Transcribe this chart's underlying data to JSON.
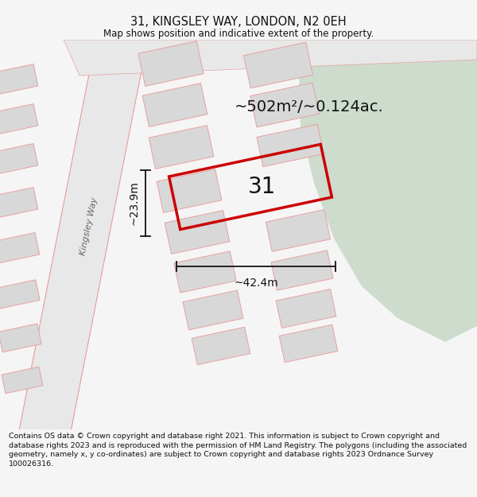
{
  "title": "31, KINGSLEY WAY, LONDON, N2 0EH",
  "subtitle": "Map shows position and indicative extent of the property.",
  "footer": "Contains OS data © Crown copyright and database right 2021. This information is subject to Crown copyright and database rights 2023 and is reproduced with the permission of HM Land Registry. The polygons (including the associated geometry, namely x, y co-ordinates) are subject to Crown copyright and database rights 2023 Ordnance Survey 100026316.",
  "area_label": "~502m²/~0.124ac.",
  "width_label": "~42.4m",
  "height_label": "~23.9m",
  "street_label": "Kingsley Way",
  "property_number": "31",
  "bg_color": "#f5f5f5",
  "map_bg": "#f2f2f2",
  "green_color": "#cddccd",
  "building_fill": "#d8d8d8",
  "building_stroke": "#e8a0a0",
  "road_stroke": "#e8a0a0",
  "property_stroke": "#cc0000",
  "dim_color": "#111111",
  "label_color": "#111111",
  "street_color": "#666666",
  "title_fontsize": 10.5,
  "subtitle_fontsize": 8.5,
  "footer_fontsize": 6.8,
  "area_fontsize": 14,
  "street_fontsize": 8,
  "number_fontsize": 20,
  "dim_fontsize": 10
}
